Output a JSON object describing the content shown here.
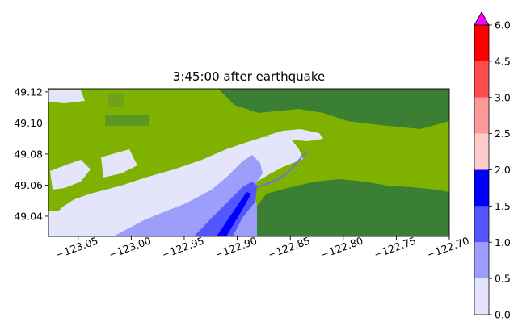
{
  "title": "3:45:00 after earthquake",
  "map": {
    "lon_range": [
      -123.078,
      -122.7
    ],
    "lat_range": [
      49.027,
      49.122
    ],
    "x_ticks": [
      {
        "value": -123.05,
        "label": "−123.05"
      },
      {
        "value": -123.0,
        "label": "−123.00"
      },
      {
        "value": -122.95,
        "label": "−122.95"
      },
      {
        "value": -122.9,
        "label": "−122.90"
      },
      {
        "value": -122.85,
        "label": "−122.85"
      },
      {
        "value": -122.8,
        "label": "−122.80"
      },
      {
        "value": -122.75,
        "label": "−122.75"
      },
      {
        "value": -122.7,
        "label": "−122.70"
      }
    ],
    "y_ticks": [
      {
        "value": 49.04,
        "label": "49.04"
      },
      {
        "value": 49.06,
        "label": "49.06"
      },
      {
        "value": 49.08,
        "label": "49.08"
      },
      {
        "value": 49.1,
        "label": "49.10"
      },
      {
        "value": 49.12,
        "label": "49.12"
      }
    ],
    "colors": {
      "lowland": "#7fb100",
      "upland": "#3a7f33",
      "flood_0": "#e4e4fb",
      "flood_05": "#9d9dfc",
      "flood_1": "#5555fd",
      "flood_15": "#0000ff"
    }
  },
  "colorbar": {
    "levels": [
      "0.0",
      "0.5",
      "1.0",
      "1.5",
      "2.0",
      "2.5",
      "3.0",
      "4.5",
      "6.0"
    ],
    "colors": [
      "#e4e4ff",
      "#9d9dff",
      "#5555ff",
      "#0000ff",
      "#ffcccc",
      "#ff9999",
      "#ff4c4c",
      "#ff0000"
    ],
    "extend_color": "#ff00ff"
  }
}
